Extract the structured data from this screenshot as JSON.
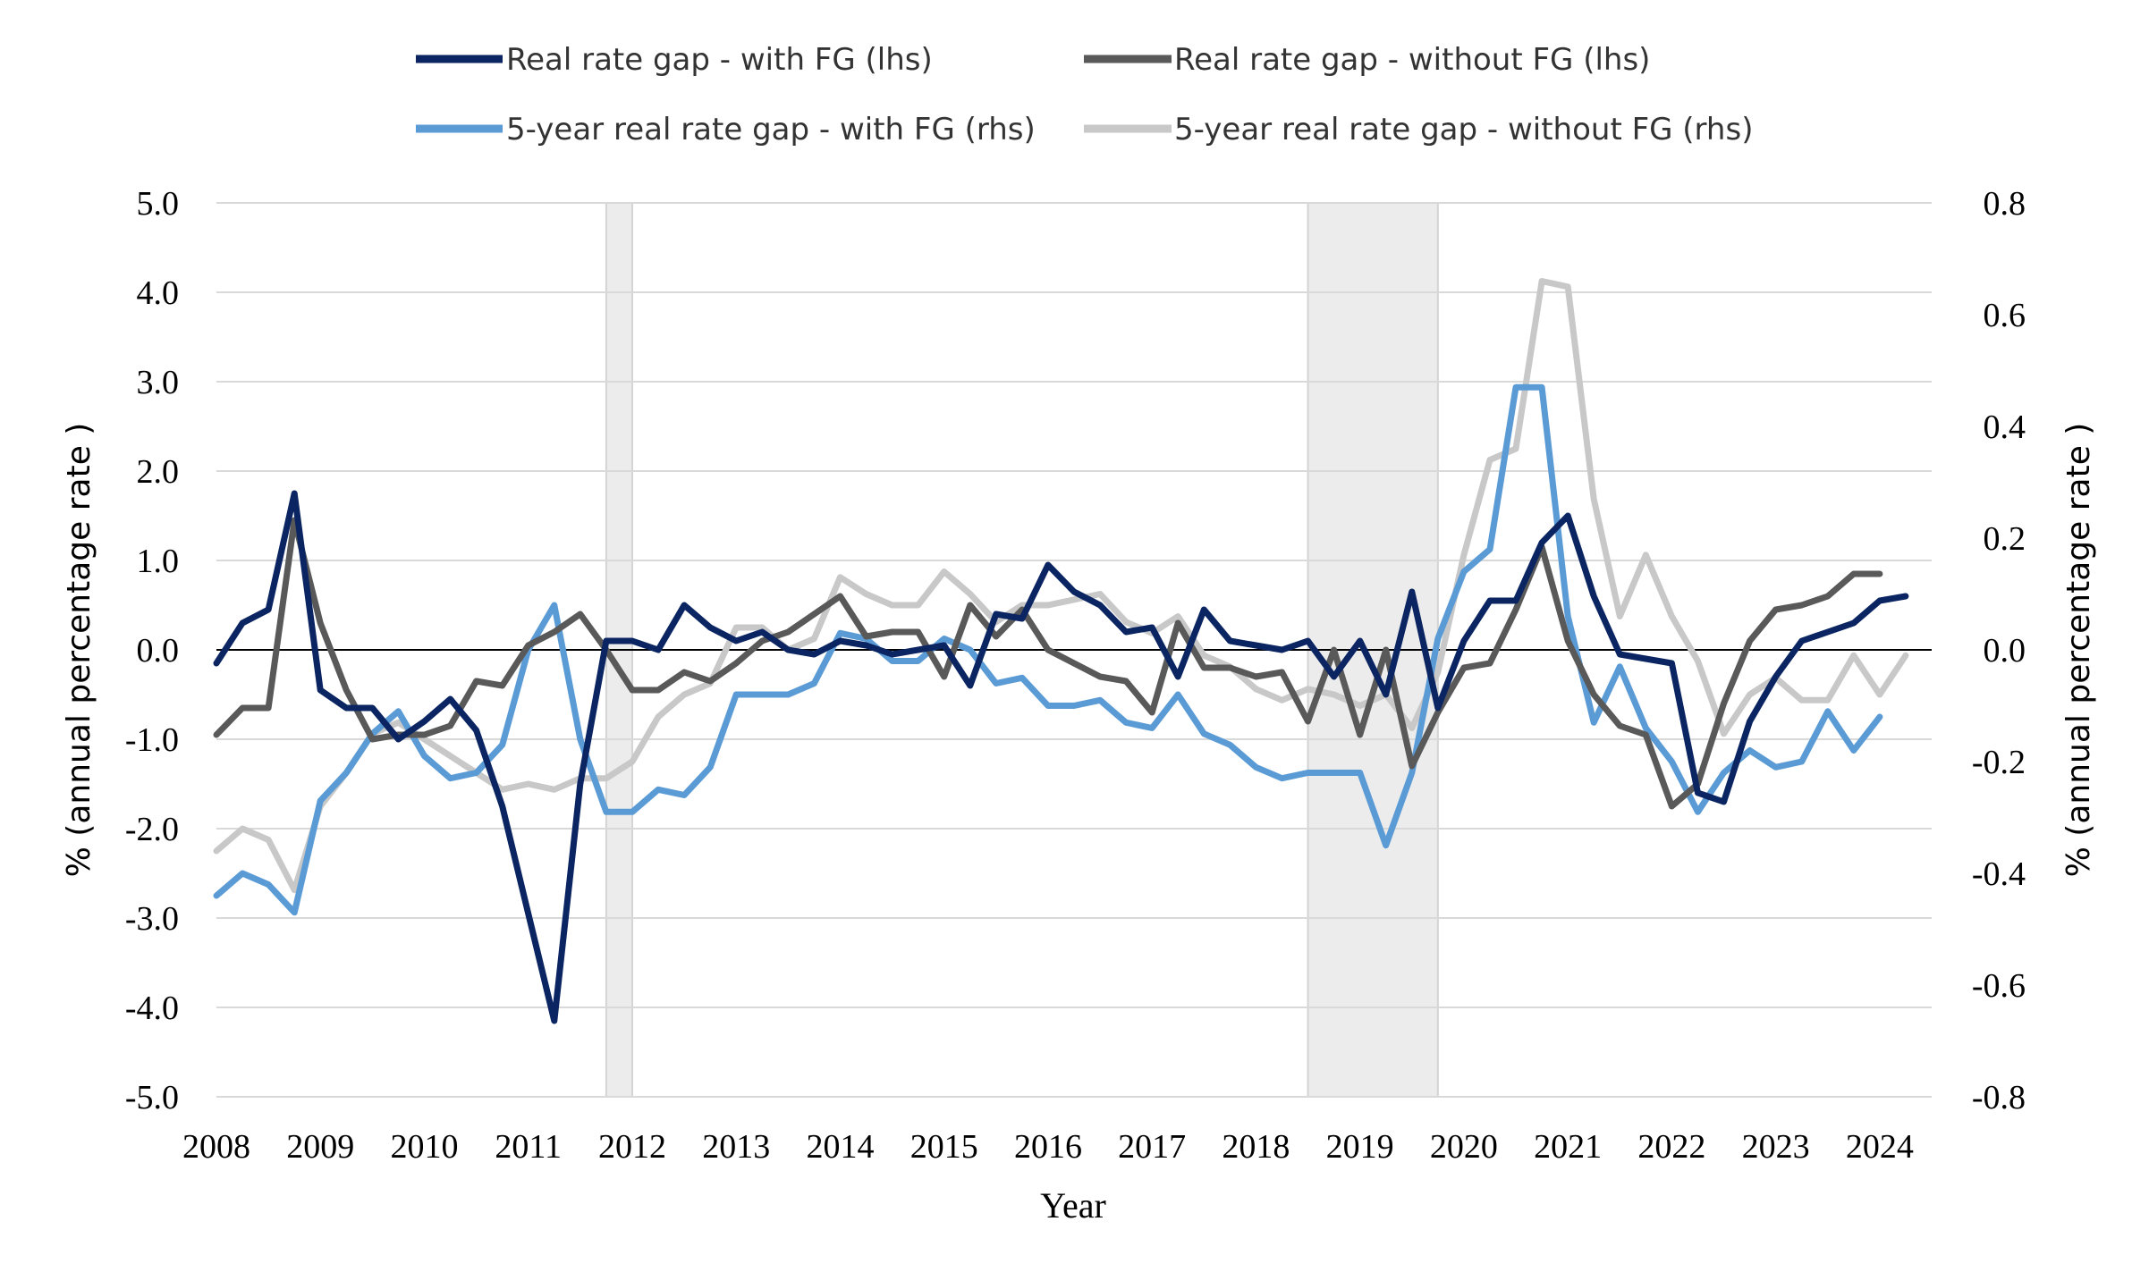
{
  "chart_data": {
    "type": "line",
    "xlabel": "Year",
    "ylabel_left": "% (annual percentage rate )",
    "ylabel_right": "% (annual percentage rate )",
    "ylim_left": [
      -5,
      5
    ],
    "ylim_right": [
      -0.8,
      0.8
    ],
    "yticks_left": [
      "5.0",
      "4.0",
      "3.0",
      "2.0",
      "1.0",
      "0.0",
      "-1.0",
      "-2.0",
      "-3.0",
      "-4.0",
      "-5.0"
    ],
    "yticks_right": [
      "0.8",
      "0.6",
      "0.4",
      "0.2",
      "0.0",
      "-0.2",
      "-0.4",
      "-0.6",
      "-0.8"
    ],
    "x_start": 2008.0,
    "x_end": 2024.5,
    "x_step": 0.25,
    "xticks": [
      "2008",
      "2009",
      "2010",
      "2011",
      "2012",
      "2013",
      "2014",
      "2015",
      "2016",
      "2017",
      "2018",
      "2019",
      "2020",
      "2021",
      "2022",
      "2023",
      "2024"
    ],
    "grid": "horizontal",
    "legend_position": "top",
    "shaded_periods": [
      [
        2011.75,
        2012.0
      ],
      [
        2018.5,
        2019.75
      ]
    ],
    "series": [
      {
        "name": "Real rate gap - with FG (lhs)",
        "axis": "left",
        "color": "#0b2562",
        "values": [
          -0.15,
          0.3,
          0.45,
          1.75,
          -0.45,
          -0.65,
          -0.65,
          -1.0,
          -0.8,
          -0.55,
          -0.9,
          -1.75,
          -2.95,
          -4.15,
          -1.5,
          0.1,
          0.1,
          0.0,
          0.5,
          0.25,
          0.1,
          0.2,
          0.0,
          -0.05,
          0.1,
          0.05,
          -0.05,
          0.0,
          0.05,
          -0.4,
          0.4,
          0.35,
          0.95,
          0.65,
          0.5,
          0.2,
          0.25,
          -0.3,
          0.45,
          0.1,
          0.05,
          0.0,
          0.1,
          -0.3,
          0.1,
          -0.5,
          0.65,
          -0.65,
          0.1,
          0.55,
          0.55,
          1.2,
          1.5,
          0.6,
          -0.05,
          -0.1,
          -0.15,
          -1.6,
          -1.7,
          -0.8,
          -0.3,
          0.1,
          0.2,
          0.3,
          0.55,
          0.6
        ]
      },
      {
        "name": "Real rate gap - without FG (lhs)",
        "axis": "left",
        "color": "#595959",
        "values": [
          -0.95,
          -0.65,
          -0.65,
          1.45,
          0.3,
          -0.45,
          -1.0,
          -0.95,
          -0.95,
          -0.85,
          -0.35,
          -0.4,
          0.05,
          0.2,
          0.4,
          0.0,
          -0.45,
          -0.45,
          -0.25,
          -0.35,
          -0.15,
          0.1,
          0.2,
          0.4,
          0.6,
          0.15,
          0.2,
          0.2,
          -0.3,
          0.5,
          0.15,
          0.45,
          0.0,
          -0.15,
          -0.3,
          -0.35,
          -0.7,
          0.3,
          -0.2,
          -0.2,
          -0.3,
          -0.25,
          -0.8,
          0.0,
          -0.95,
          0.0,
          -1.3,
          -0.7,
          -0.2,
          -0.15,
          0.45,
          1.15,
          0.1,
          -0.5,
          -0.85,
          -0.95,
          -1.75,
          -1.5,
          -0.6,
          0.1,
          0.45,
          0.5,
          0.6,
          0.85,
          0.85
        ]
      },
      {
        "name": "5-year real rate gap - with FG (rhs)",
        "axis": "right",
        "color": "#5b9bd5",
        "values": [
          -0.44,
          -0.4,
          -0.42,
          -0.47,
          -0.27,
          -0.22,
          -0.15,
          -0.11,
          -0.19,
          -0.23,
          -0.22,
          -0.17,
          0.0,
          0.08,
          -0.16,
          -0.29,
          -0.29,
          -0.25,
          -0.26,
          -0.21,
          -0.08,
          -0.08,
          -0.08,
          -0.06,
          0.03,
          0.02,
          -0.02,
          -0.02,
          0.02,
          0.0,
          -0.06,
          -0.05,
          -0.1,
          -0.1,
          -0.09,
          -0.13,
          -0.14,
          -0.08,
          -0.15,
          -0.17,
          -0.21,
          -0.23,
          -0.22,
          -0.22,
          -0.22,
          -0.35,
          -0.22,
          0.02,
          0.14,
          0.18,
          0.47,
          0.47,
          0.06,
          -0.13,
          -0.03,
          -0.14,
          -0.2,
          -0.29,
          -0.22,
          -0.18,
          -0.21,
          -0.2,
          -0.11,
          -0.18,
          -0.12
        ]
      },
      {
        "name": "5-year real rate gap - without FG (rhs)",
        "axis": "right",
        "color": "#c8c8c8",
        "values": [
          -0.36,
          -0.32,
          -0.34,
          -0.43,
          -0.28,
          -0.22,
          -0.15,
          -0.13,
          -0.16,
          -0.19,
          -0.22,
          -0.25,
          -0.24,
          -0.25,
          -0.23,
          -0.23,
          -0.2,
          -0.12,
          -0.08,
          -0.06,
          0.04,
          0.04,
          0.0,
          0.02,
          0.13,
          0.1,
          0.08,
          0.08,
          0.14,
          0.1,
          0.05,
          0.08,
          0.08,
          0.09,
          0.1,
          0.05,
          0.03,
          0.06,
          -0.01,
          -0.03,
          -0.07,
          -0.09,
          -0.07,
          -0.08,
          -0.1,
          -0.08,
          -0.14,
          -0.04,
          0.17,
          0.34,
          0.36,
          0.66,
          0.65,
          0.27,
          0.06,
          0.17,
          0.06,
          -0.02,
          -0.15,
          -0.08,
          -0.05,
          -0.09,
          -0.09,
          -0.01,
          -0.08,
          -0.01
        ]
      }
    ]
  }
}
